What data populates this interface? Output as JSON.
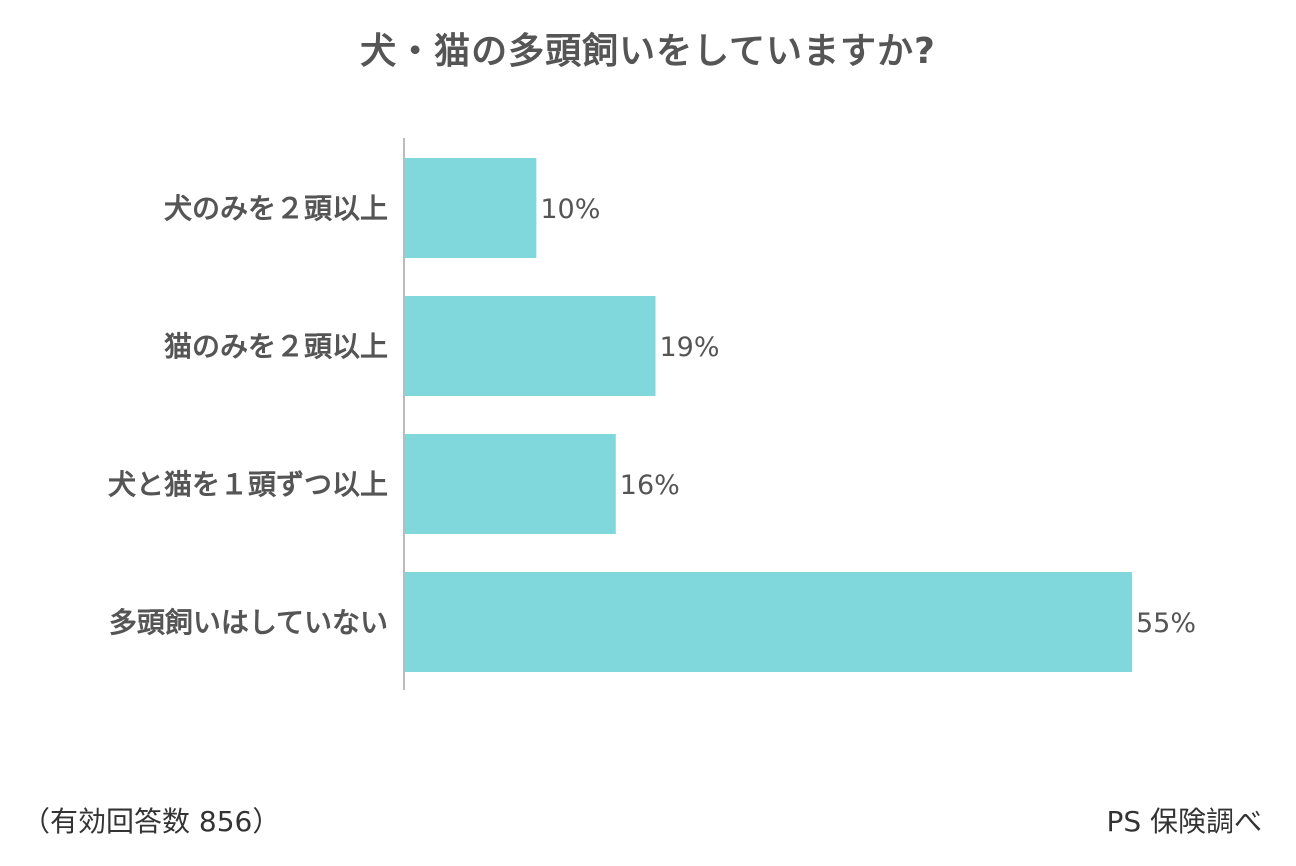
{
  "title": "犬・猫の多頭飼いをしていますか?",
  "chart_data": {
    "type": "bar",
    "orientation": "horizontal",
    "title": "犬・猫の多頭飼いをしていますか?",
    "categories": [
      "犬のみを２頭以上",
      "猫のみを２頭以上",
      "犬と猫を１頭ずつ以上",
      "多頭飼いはしていない"
    ],
    "values": [
      10,
      19,
      16,
      55
    ],
    "value_labels": [
      "10%",
      "19%",
      "16%",
      "55%"
    ],
    "unit": "%",
    "xlim": [
      0,
      55
    ],
    "grid": false,
    "bar_color": "#80D8DC",
    "axis_color": "#BBBBBB"
  },
  "footnote_left": "（有効回答数 856）",
  "footnote_right": "PS 保険調べ"
}
